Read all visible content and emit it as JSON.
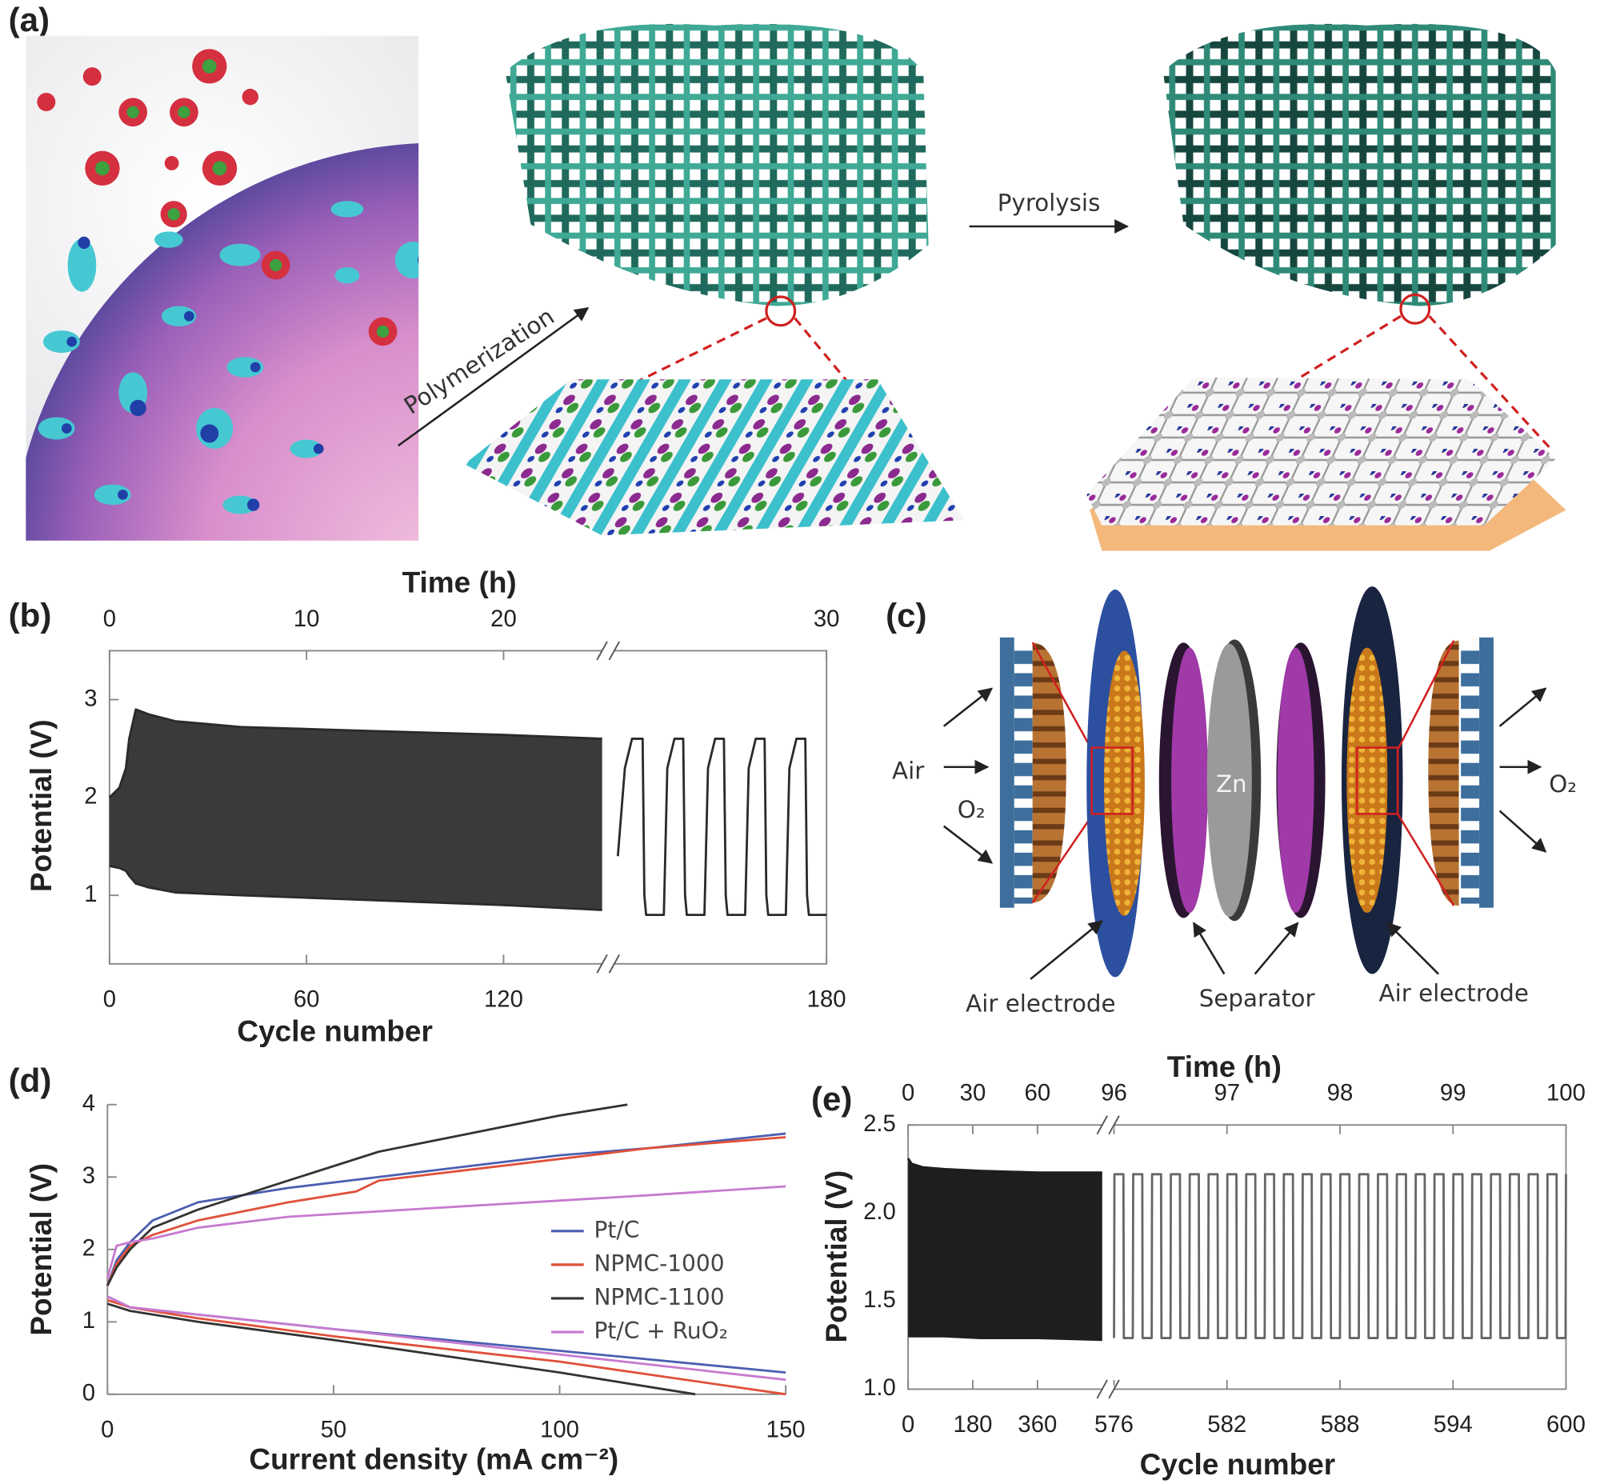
{
  "panel_a": {
    "label": "(a)",
    "arrow_1": "Polymerization",
    "arrow_2": "Pyrolysis"
  },
  "panel_c": {
    "label": "(c)",
    "air": "Air",
    "o2_in": "O₂",
    "o2_out": "O₂",
    "zn": "Zn",
    "electrode_left": "Air electrode",
    "separator": "Separator",
    "electrode_right": "Air electrode"
  },
  "chart_data": [
    {
      "type": "line",
      "panel_label": "(b)",
      "xlabel": "Cycle number",
      "x2label": "Time (h)",
      "ylabel": "Potential (V)",
      "frame": "box",
      "xlim": [
        0,
        180
      ],
      "xbreak": [
        150,
        174
      ],
      "xticks": [
        0,
        60,
        120,
        180
      ],
      "x2lim": [
        0,
        30
      ],
      "x2break": [
        25,
        29
      ],
      "x2ticks": [
        0,
        10,
        20,
        30
      ],
      "ylim": [
        0.3,
        3.5
      ],
      "yticks": [
        1,
        2,
        3
      ],
      "band_fill": "#3a3a3a",
      "series": [
        {
          "color": "#2a2a2a",
          "x": [
            0,
            3,
            5,
            6,
            8,
            12,
            20,
            40,
            80,
            120,
            150
          ],
          "values": [
            2.0,
            2.1,
            2.3,
            2.6,
            2.9,
            2.85,
            2.78,
            2.72,
            2.68,
            2.64,
            2.6
          ]
        },
        {
          "color": "#2a2a2a",
          "x": [
            0,
            3,
            5,
            6,
            8,
            12,
            20,
            40,
            80,
            120,
            150
          ],
          "values": [
            1.3,
            1.28,
            1.25,
            1.2,
            1.12,
            1.08,
            1.03,
            1.0,
            0.95,
            0.9,
            0.85
          ]
        },
        {
          "color": "#2a2a2a",
          "x": [
            174.1,
            174.3,
            174.5,
            174.8,
            174.85,
            174.9,
            175.4,
            175.5,
            175.7,
            175.95,
            176.0,
            176.05,
            176.55,
            176.65,
            176.85,
            177.1,
            177.15,
            177.2,
            177.7,
            177.8,
            178.0,
            178.25,
            178.3,
            178.35,
            178.85,
            178.95,
            179.15,
            179.4,
            179.45,
            179.5,
            180
          ],
          "values": [
            1.4,
            2.3,
            2.6,
            2.6,
            1.0,
            0.8,
            0.8,
            2.3,
            2.6,
            2.6,
            1.0,
            0.8,
            0.8,
            2.3,
            2.6,
            2.6,
            1.0,
            0.8,
            0.8,
            2.3,
            2.6,
            2.6,
            1.0,
            0.8,
            0.8,
            2.3,
            2.6,
            2.6,
            1.0,
            0.8,
            0.8
          ]
        }
      ]
    },
    {
      "type": "line",
      "panel_label": "(d)",
      "xlabel": "Current density (mA cm⁻²)",
      "ylabel": "Potential (V)",
      "frame": "open",
      "legend": "lower right",
      "xlim": [
        0,
        150
      ],
      "xticks": [
        0,
        50,
        100,
        150
      ],
      "ylim": [
        0,
        4
      ],
      "yticks": [
        0,
        1,
        2,
        3,
        4
      ],
      "series": [
        {
          "name": "Pt/C",
          "color": "#4a5fb0",
          "x": [
            0,
            2,
            5,
            10,
            20,
            40,
            60,
            80,
            100,
            120,
            150,
            null,
            0,
            5,
            20,
            50,
            100,
            150
          ],
          "values": [
            1.5,
            1.85,
            2.1,
            2.4,
            2.65,
            2.85,
            3.0,
            3.15,
            3.3,
            3.4,
            3.6,
            null,
            1.35,
            1.2,
            1.1,
            0.9,
            0.6,
            0.3
          ]
        },
        {
          "name": "NPMC-1000",
          "color": "#e0503a",
          "x": [
            0,
            2,
            5,
            10,
            20,
            40,
            55,
            60,
            80,
            100,
            120,
            150,
            null,
            0,
            5,
            20,
            50,
            100,
            150
          ],
          "values": [
            1.5,
            1.8,
            2.05,
            2.2,
            2.4,
            2.65,
            2.8,
            2.95,
            3.1,
            3.25,
            3.4,
            3.55,
            null,
            1.3,
            1.2,
            1.05,
            0.8,
            0.45,
            0.0
          ]
        },
        {
          "name": "NPMC-1100",
          "color": "#333333",
          "x": [
            0,
            2,
            5,
            10,
            20,
            40,
            60,
            80,
            100,
            115,
            null,
            0,
            5,
            20,
            50,
            100,
            130
          ],
          "values": [
            1.5,
            1.75,
            2.0,
            2.3,
            2.55,
            2.95,
            3.35,
            3.6,
            3.85,
            4.0,
            null,
            1.25,
            1.15,
            1.0,
            0.75,
            0.3,
            0.0
          ]
        },
        {
          "name": "Pt/C + RuO₂",
          "color": "#c77ad0",
          "x": [
            0,
            2,
            5,
            10,
            20,
            40,
            80,
            120,
            150,
            null,
            0,
            5,
            20,
            50,
            100,
            150
          ],
          "values": [
            1.6,
            2.05,
            2.1,
            2.15,
            2.3,
            2.45,
            2.6,
            2.75,
            2.87,
            null,
            1.35,
            1.2,
            1.1,
            0.9,
            0.55,
            0.2
          ]
        }
      ]
    },
    {
      "type": "line",
      "panel_label": "(e)",
      "xlabel": "Cycle number",
      "x2label": "Time (h)",
      "ylabel": "Potential (V)",
      "frame": "box",
      "xlim": [
        0,
        600
      ],
      "xbreak": [
        540,
        576
      ],
      "xticks": [
        0,
        180,
        360,
        576,
        582,
        588,
        594,
        600
      ],
      "x2lim": [
        0,
        100
      ],
      "x2break": [
        90,
        96
      ],
      "x2ticks": [
        0,
        30,
        60,
        96,
        97,
        98,
        99,
        100
      ],
      "ylim": [
        1.0,
        2.5
      ],
      "yticks": [
        {
          "value": 1,
          "label": "1.0"
        },
        1.5,
        {
          "value": 2,
          "label": "2.0"
        },
        2.5
      ],
      "band_fill": "#1e1e1e",
      "series": [
        {
          "color": "#1e1e1e",
          "x": [
            0,
            10,
            40,
            100,
            200,
            360,
            540
          ],
          "values": [
            2.31,
            2.28,
            2.26,
            2.25,
            2.24,
            2.23,
            2.23
          ]
        },
        {
          "color": "#1e1e1e",
          "x": [
            0,
            10,
            40,
            100,
            200,
            360,
            540
          ],
          "values": [
            1.3,
            1.3,
            1.3,
            1.3,
            1.29,
            1.29,
            1.28
          ]
        },
        {
          "color": "#666666",
          "x": [
            576,
            576.02,
            576.5,
            576.52,
            577,
            577.02,
            577.5,
            577.52,
            578,
            578.02,
            578.5,
            578.52,
            579,
            579.02,
            579.5,
            579.52,
            580,
            580.02,
            580.5,
            580.52,
            581,
            581.02,
            581.5,
            581.52,
            582,
            582.02,
            582.5,
            582.52,
            583,
            583.02,
            583.5,
            583.52,
            584,
            584.02,
            584.5,
            584.52,
            585,
            585.02,
            585.5,
            585.52,
            586,
            586.02,
            586.5,
            586.52,
            587,
            587.02,
            587.5,
            587.52,
            588,
            588.02,
            588.5,
            588.52,
            589,
            589.02,
            589.5,
            589.52,
            590,
            590.02,
            590.5,
            590.52,
            591,
            591.02,
            591.5,
            591.52,
            592,
            592.02,
            592.5,
            592.52,
            593,
            593.02,
            593.5,
            593.52,
            594,
            594.02,
            594.5,
            594.52,
            595,
            595.02,
            595.5,
            595.52,
            596,
            596.02,
            596.5,
            596.52,
            597,
            597.02,
            597.5,
            597.52,
            598,
            598.02,
            598.5,
            598.52,
            599,
            599.02,
            599.5,
            599.52,
            599.98,
            600
          ],
          "values": [
            1.29,
            2.22,
            2.22,
            1.29,
            1.29,
            2.22,
            2.22,
            1.29,
            1.29,
            2.22,
            2.22,
            1.29,
            1.29,
            2.22,
            2.22,
            1.29,
            1.29,
            2.22,
            2.22,
            1.29,
            1.29,
            2.22,
            2.22,
            1.29,
            1.29,
            2.22,
            2.22,
            1.29,
            1.29,
            2.22,
            2.22,
            1.29,
            1.29,
            2.22,
            2.22,
            1.29,
            1.29,
            2.22,
            2.22,
            1.29,
            1.29,
            2.22,
            2.22,
            1.29,
            1.29,
            2.22,
            2.22,
            1.29,
            1.29,
            2.22,
            2.22,
            1.29,
            1.29,
            2.22,
            2.22,
            1.29,
            1.29,
            2.22,
            2.22,
            1.29,
            1.29,
            2.22,
            2.22,
            1.29,
            1.29,
            2.22,
            2.22,
            1.29,
            1.29,
            2.22,
            2.22,
            1.29,
            1.29,
            2.22,
            2.22,
            1.29,
            1.29,
            2.22,
            2.22,
            1.29,
            1.29,
            2.22,
            2.22,
            1.29,
            1.29,
            2.22,
            2.22,
            1.29,
            1.29,
            2.22,
            2.22,
            1.29,
            1.29,
            2.22,
            2.22,
            1.29,
            1.29,
            2.22
          ]
        }
      ]
    }
  ]
}
